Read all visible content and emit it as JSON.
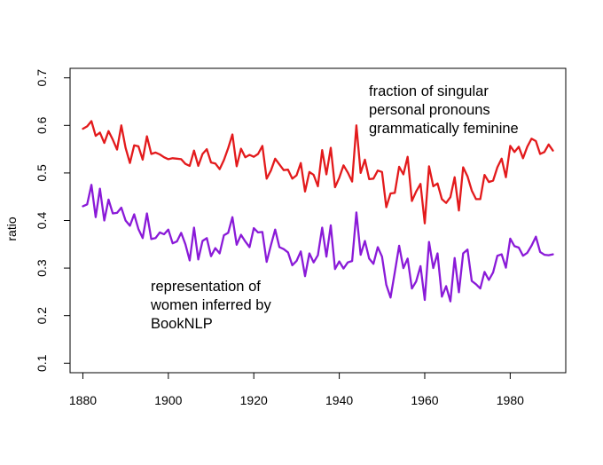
{
  "chart_data": {
    "type": "line",
    "title": "",
    "xlabel": "",
    "ylabel": "ratio",
    "xlim": [
      1877,
      1993
    ],
    "ylim": [
      0.08,
      0.72
    ],
    "xticks": [
      1880,
      1900,
      1920,
      1940,
      1960,
      1980
    ],
    "yticks": [
      0.1,
      0.2,
      0.3,
      0.4,
      0.5,
      0.6,
      0.7
    ],
    "xtick_labels": [
      "1880",
      "1900",
      "1920",
      "1940",
      "1960",
      "1980"
    ],
    "ytick_labels": [
      "0.1",
      "0.2",
      "0.3",
      "0.4",
      "0.5",
      "0.6",
      "0.7"
    ],
    "grid": false,
    "legend": "none",
    "x": [
      1880,
      1881,
      1882,
      1883,
      1884,
      1885,
      1886,
      1887,
      1888,
      1889,
      1890,
      1891,
      1892,
      1893,
      1894,
      1895,
      1896,
      1897,
      1898,
      1899,
      1900,
      1901,
      1902,
      1903,
      1904,
      1905,
      1906,
      1907,
      1908,
      1909,
      1910,
      1911,
      1912,
      1913,
      1914,
      1915,
      1916,
      1917,
      1918,
      1919,
      1920,
      1921,
      1922,
      1923,
      1924,
      1925,
      1926,
      1927,
      1928,
      1929,
      1930,
      1931,
      1932,
      1933,
      1934,
      1935,
      1936,
      1937,
      1938,
      1939,
      1940,
      1941,
      1942,
      1943,
      1944,
      1945,
      1946,
      1947,
      1948,
      1949,
      1950,
      1951,
      1952,
      1953,
      1954,
      1955,
      1956,
      1957,
      1958,
      1959,
      1960,
      1961,
      1962,
      1963,
      1964,
      1965,
      1966,
      1967,
      1968,
      1969,
      1970,
      1971,
      1972,
      1973,
      1974,
      1975,
      1976,
      1977,
      1978,
      1979,
      1980,
      1981,
      1982,
      1983,
      1984,
      1985,
      1986,
      1987,
      1988,
      1989,
      1990
    ],
    "series": [
      {
        "color": "#e31a1c",
        "values": [
          0.593,
          0.598,
          0.609,
          0.578,
          0.585,
          0.563,
          0.588,
          0.57,
          0.549,
          0.6,
          0.553,
          0.521,
          0.558,
          0.556,
          0.528,
          0.577,
          0.54,
          0.543,
          0.539,
          0.533,
          0.529,
          0.531,
          0.53,
          0.529,
          0.519,
          0.515,
          0.547,
          0.515,
          0.54,
          0.55,
          0.522,
          0.52,
          0.508,
          0.527,
          0.552,
          0.581,
          0.514,
          0.551,
          0.533,
          0.538,
          0.534,
          0.54,
          0.557,
          0.488,
          0.505,
          0.53,
          0.518,
          0.506,
          0.507,
          0.488,
          0.495,
          0.521,
          0.461,
          0.502,
          0.496,
          0.472,
          0.548,
          0.497,
          0.553,
          0.47,
          0.49,
          0.516,
          0.501,
          0.482,
          0.6,
          0.5,
          0.528,
          0.487,
          0.488,
          0.505,
          0.502,
          0.428,
          0.457,
          0.458,
          0.513,
          0.497,
          0.534,
          0.441,
          0.461,
          0.477,
          0.394,
          0.514,
          0.472,
          0.478,
          0.445,
          0.437,
          0.449,
          0.491,
          0.421,
          0.512,
          0.493,
          0.463,
          0.445,
          0.445,
          0.496,
          0.481,
          0.484,
          0.512,
          0.53,
          0.491,
          0.557,
          0.544,
          0.555,
          0.531,
          0.555,
          0.572,
          0.567,
          0.54,
          0.544,
          0.56,
          0.547
        ]
      },
      {
        "color": "#8a1ad8",
        "values": [
          0.43,
          0.434,
          0.475,
          0.407,
          0.467,
          0.4,
          0.444,
          0.415,
          0.416,
          0.427,
          0.4,
          0.389,
          0.413,
          0.382,
          0.363,
          0.415,
          0.361,
          0.363,
          0.375,
          0.371,
          0.381,
          0.352,
          0.356,
          0.374,
          0.35,
          0.316,
          0.385,
          0.318,
          0.357,
          0.363,
          0.325,
          0.342,
          0.331,
          0.369,
          0.374,
          0.407,
          0.349,
          0.37,
          0.356,
          0.344,
          0.384,
          0.375,
          0.376,
          0.313,
          0.348,
          0.381,
          0.344,
          0.34,
          0.333,
          0.306,
          0.315,
          0.335,
          0.283,
          0.331,
          0.312,
          0.327,
          0.385,
          0.324,
          0.39,
          0.298,
          0.314,
          0.299,
          0.312,
          0.315,
          0.417,
          0.328,
          0.357,
          0.32,
          0.309,
          0.344,
          0.324,
          0.265,
          0.238,
          0.291,
          0.347,
          0.3,
          0.32,
          0.257,
          0.272,
          0.304,
          0.233,
          0.355,
          0.3,
          0.331,
          0.24,
          0.262,
          0.23,
          0.321,
          0.249,
          0.331,
          0.339,
          0.273,
          0.266,
          0.257,
          0.292,
          0.275,
          0.291,
          0.326,
          0.329,
          0.301,
          0.362,
          0.346,
          0.343,
          0.326,
          0.332,
          0.347,
          0.366,
          0.334,
          0.328,
          0.327,
          0.329
        ]
      }
    ],
    "annotations": [
      {
        "target": "series-0",
        "lines": [
          "fraction of singular",
          "personal pronouns",
          "grammatically feminine"
        ]
      },
      {
        "target": "series-1",
        "lines": [
          "representation of",
          "women inferred by",
          "BookNLP"
        ]
      }
    ]
  }
}
